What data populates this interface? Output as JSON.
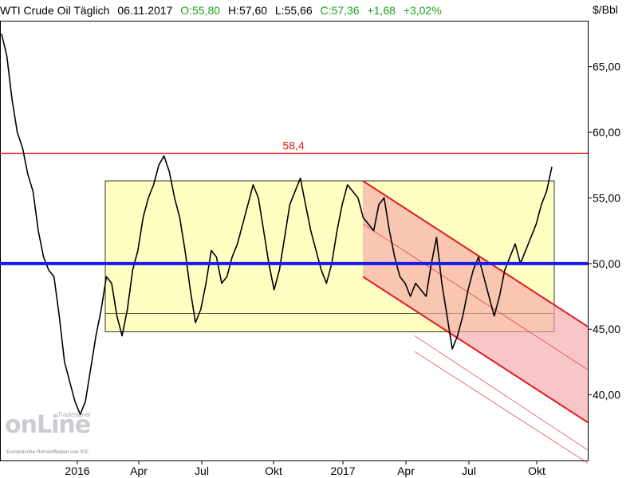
{
  "header": {
    "instrument": "WTI Crude Oil Täglich",
    "date": "06.11.2017",
    "open": "O:55,80",
    "high": "H:57,60",
    "low": "L:55,66",
    "close": "C:57,36",
    "change": "+1,68",
    "change_pct": "+3,02%"
  },
  "unit": "$/Bbl",
  "watermark": {
    "logo_text": "onLine",
    "tag": "Tradesignal",
    "source": "Europäische Rohstoffdaten von ICE"
  },
  "colors": {
    "price": "#000000",
    "support": "#1a1aee",
    "resistance": "#e21b1b",
    "range_box": "#ffffc4",
    "channel": "#f5a8a8",
    "up": "#1aa31a"
  },
  "chart_data": {
    "type": "line",
    "ylim": [
      35,
      68.5
    ],
    "yticks": [
      40,
      45,
      50,
      55,
      60,
      65
    ],
    "ytick_labels": [
      "40,00",
      "45,00",
      "50,00",
      "55,00",
      "60,00",
      "65,00"
    ],
    "xticks": [
      "2016",
      "Apr",
      "Jul",
      "Okt",
      "2017",
      "Apr",
      "Jul",
      "Okt"
    ],
    "series": [
      {
        "values": [
          67.5,
          65.8,
          62.5,
          60.0,
          58.8,
          56.8,
          55.5,
          52.5,
          50.5,
          49.5,
          49.0,
          46.0,
          42.5,
          41.0,
          39.5,
          38.5,
          39.5,
          42.0,
          44.5,
          46.5,
          49.0,
          48.5,
          46.0,
          44.5,
          46.5,
          49.5,
          51.0,
          53.5,
          55.0,
          56.0,
          57.5,
          58.2,
          57.0,
          55.0,
          53.5,
          51.0,
          48.0,
          45.5,
          46.5,
          48.5,
          51.0,
          50.5,
          48.5,
          49.0,
          50.5,
          51.5,
          53.0,
          54.5,
          56.0,
          55.0,
          52.5,
          50.0,
          48.0,
          49.5,
          52.0,
          54.5,
          55.5,
          56.5,
          54.5,
          52.5,
          51.0,
          49.5,
          48.5,
          50.0,
          52.5,
          54.5,
          56.0,
          55.5,
          55.0,
          53.5,
          53.0,
          52.5,
          54.5,
          55.0,
          52.5,
          50.5,
          49.0,
          48.5,
          47.5,
          48.5,
          48.0,
          47.5,
          50.0,
          52.0,
          48.5,
          46.0,
          43.5,
          44.5,
          46.0,
          48.0,
          49.5,
          50.5,
          49.0,
          47.5,
          46.0,
          47.5,
          49.5,
          50.5,
          51.5,
          50.0,
          51.0,
          52.0,
          53.0,
          54.5,
          55.5,
          57.36
        ]
      }
    ],
    "annotations": {
      "resistance": {
        "value": 58.4,
        "label": "58,4"
      },
      "support": {
        "value": 50.0
      },
      "range_box": {
        "from": 44.8,
        "to": 56.3
      },
      "inner_line": {
        "value": 46.2
      },
      "channel_top_start": 56.3,
      "channel_bottom_start": 49.0,
      "channel_top_end": 45.2,
      "channel_bottom_end": 37.9
    }
  }
}
